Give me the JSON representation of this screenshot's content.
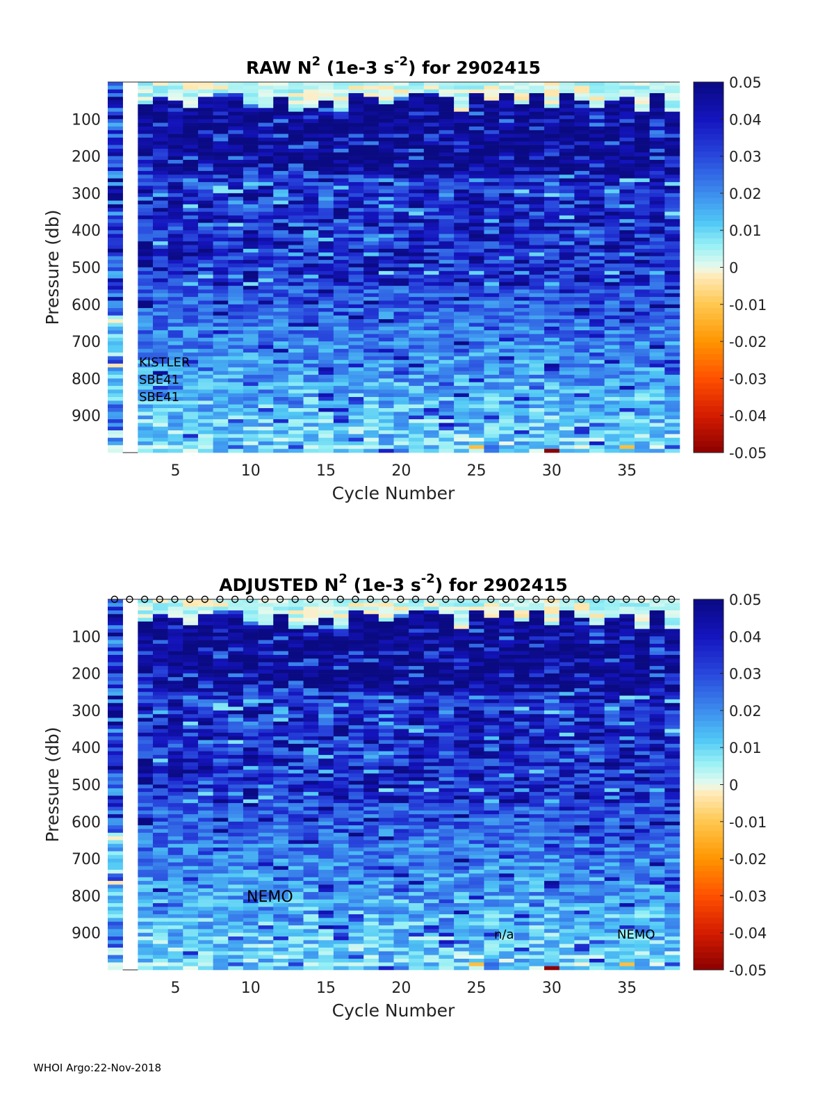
{
  "footer": "WHOI Argo:22-Nov-2018",
  "colorbar": {
    "ticks": [
      "0.05",
      "0.04",
      "0.03",
      "0.02",
      "0.01",
      "0",
      "-0.01",
      "-0.02",
      "-0.03",
      "-0.04",
      "-0.05"
    ],
    "colors": [
      "#8b0000",
      "#d41c00",
      "#ff6a00",
      "#ffb000",
      "#ffe8b0",
      "#e8fbf0",
      "#8ff0f4",
      "#4fc4f4",
      "#3b82ee",
      "#2a3bdc",
      "#0a0a8a"
    ]
  },
  "chart_data": [
    {
      "type": "heatmap",
      "title_prefix": "RAW N",
      "title_sup1": "2",
      "title_mid": " (1e-3 s",
      "title_sup2": "-2",
      "title_suffix": ") for 2902415",
      "xlabel": "Cycle Number",
      "ylabel": "Pressure (db)",
      "xlim": [
        1,
        38
      ],
      "ylim": [
        0,
        1000
      ],
      "x_ticks": [
        "5",
        "10",
        "15",
        "20",
        "25",
        "30",
        "35"
      ],
      "y_ticks": [
        "100",
        "200",
        "300",
        "400",
        "500",
        "600",
        "700",
        "800",
        "900"
      ],
      "clim": [
        -0.05,
        0.05
      ],
      "value_description": "N^2 stratification values per cycle and pressure bin, mostly 0.04-0.05 near surface to 0.005-0.02 at depth",
      "annotations": [
        "KISTLER",
        "SBE41",
        "SBE41"
      ],
      "markers": false,
      "seed": 11
    },
    {
      "type": "heatmap",
      "title_prefix": "ADJUSTED N",
      "title_sup1": "2",
      "title_mid": " (1e-3 s",
      "title_sup2": "-2",
      "title_suffix": ") for 2902415",
      "xlabel": "Cycle Number",
      "ylabel": "Pressure (db)",
      "xlim": [
        1,
        38
      ],
      "ylim": [
        0,
        1000
      ],
      "x_ticks": [
        "5",
        "10",
        "15",
        "20",
        "25",
        "30",
        "35"
      ],
      "y_ticks": [
        "100",
        "200",
        "300",
        "400",
        "500",
        "600",
        "700",
        "800",
        "900"
      ],
      "clim": [
        -0.05,
        0.05
      ],
      "value_description": "Adjusted N^2 values, same structure as raw",
      "annotations": [
        "NEMO",
        "n/a",
        "NEMO"
      ],
      "markers": true,
      "seed": 11
    }
  ]
}
